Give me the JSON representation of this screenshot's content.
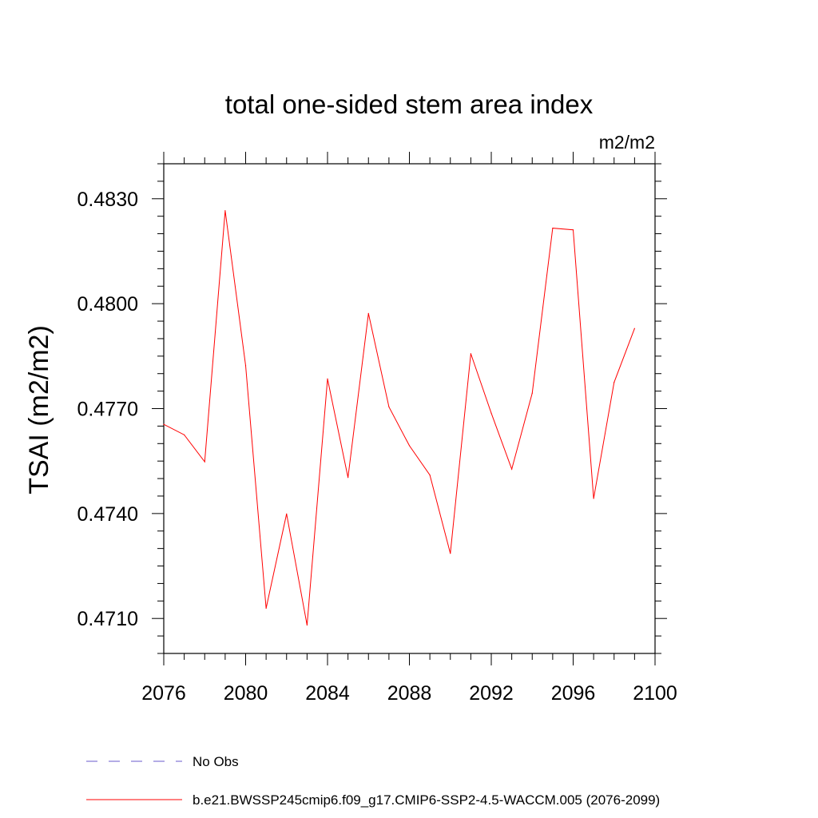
{
  "chart_data": {
    "type": "line",
    "title": "total one-sided stem area index",
    "units": "m2/m2",
    "ylabel": "TSAI  (m2/m2)",
    "xlabel": "",
    "xlim": [
      2076,
      2100
    ],
    "ylim": [
      0.47,
      0.484
    ],
    "xticks_major": [
      2076,
      2080,
      2084,
      2088,
      2092,
      2096,
      2100
    ],
    "xtick_labels": [
      "2076",
      "2080",
      "2084",
      "2088",
      "2092",
      "2096",
      "2100"
    ],
    "xticks_minor_step": 1,
    "yticks_major": [
      0.471,
      0.474,
      0.477,
      0.48,
      0.483
    ],
    "ytick_labels": [
      "0.4710",
      "0.4740",
      "0.4770",
      "0.4800",
      "0.4830"
    ],
    "yticks_minor_step": 0.0005,
    "grid": false,
    "legend_position": "bottom",
    "series": [
      {
        "name": "b.e21.BWSSP245cmip6.f09_g17.CMIP6-SSP2-4.5-WACCM.005 (2076-2099)",
        "color": "#ff0000",
        "style": "solid",
        "x": [
          2076,
          2077,
          2078,
          2079,
          2080,
          2081,
          2082,
          2083,
          2084,
          2085,
          2086,
          2087,
          2088,
          2089,
          2090,
          2091,
          2092,
          2093,
          2094,
          2095,
          2096,
          2097,
          2098,
          2099
        ],
        "values": [
          0.47655,
          0.47625,
          0.47548,
          0.48266,
          0.47823,
          0.47129,
          0.47399,
          0.47081,
          0.47785,
          0.47503,
          0.47972,
          0.47705,
          0.47594,
          0.4751,
          0.47286,
          0.47857,
          0.47687,
          0.47527,
          0.47744,
          0.48216,
          0.48211,
          0.47443,
          0.47775,
          0.47929
        ]
      }
    ],
    "legend": [
      {
        "label": "No Obs",
        "color": "#6a5acd",
        "style": "dashed"
      },
      {
        "label": "b.e21.BWSSP245cmip6.f09_g17.CMIP6-SSP2-4.5-WACCM.005 (2076-2099)",
        "color": "#ff0000",
        "style": "solid"
      }
    ]
  }
}
